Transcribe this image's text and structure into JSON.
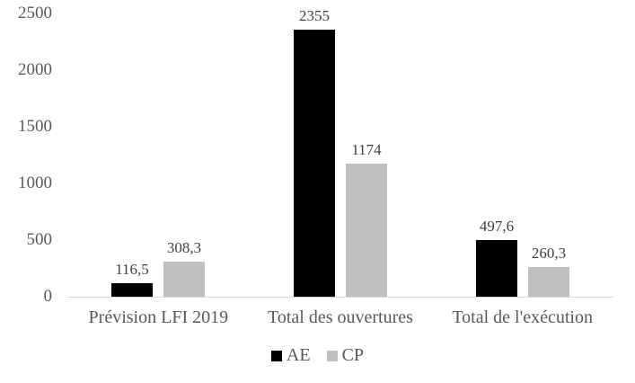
{
  "chart_data": {
    "type": "bar",
    "title": "",
    "xlabel": "",
    "ylabel": "",
    "categories": [
      "Prévision LFI 2019",
      "Total des ouvertures",
      "Total de l'exécution"
    ],
    "series": [
      {
        "name": "AE",
        "color": "#000000",
        "values": [
          116.5,
          2355,
          497.6
        ],
        "value_labels": [
          "116,5",
          "2355",
          "497,6"
        ]
      },
      {
        "name": "CP",
        "color": "#bfbfbf",
        "values": [
          308.3,
          1174,
          260.3
        ],
        "value_labels": [
          "308,3",
          "1174",
          "260,3"
        ]
      }
    ],
    "ylim": [
      0,
      2500
    ],
    "yticks": [
      0,
      500,
      1000,
      1500,
      2000,
      2500
    ],
    "grid": false,
    "legend_position": "bottom-center",
    "colors": {
      "axis_line": "#d9d9d9",
      "tick_label": "#595959",
      "category_label": "#595959",
      "value_label": "#404040",
      "background": "#ffffff"
    }
  }
}
